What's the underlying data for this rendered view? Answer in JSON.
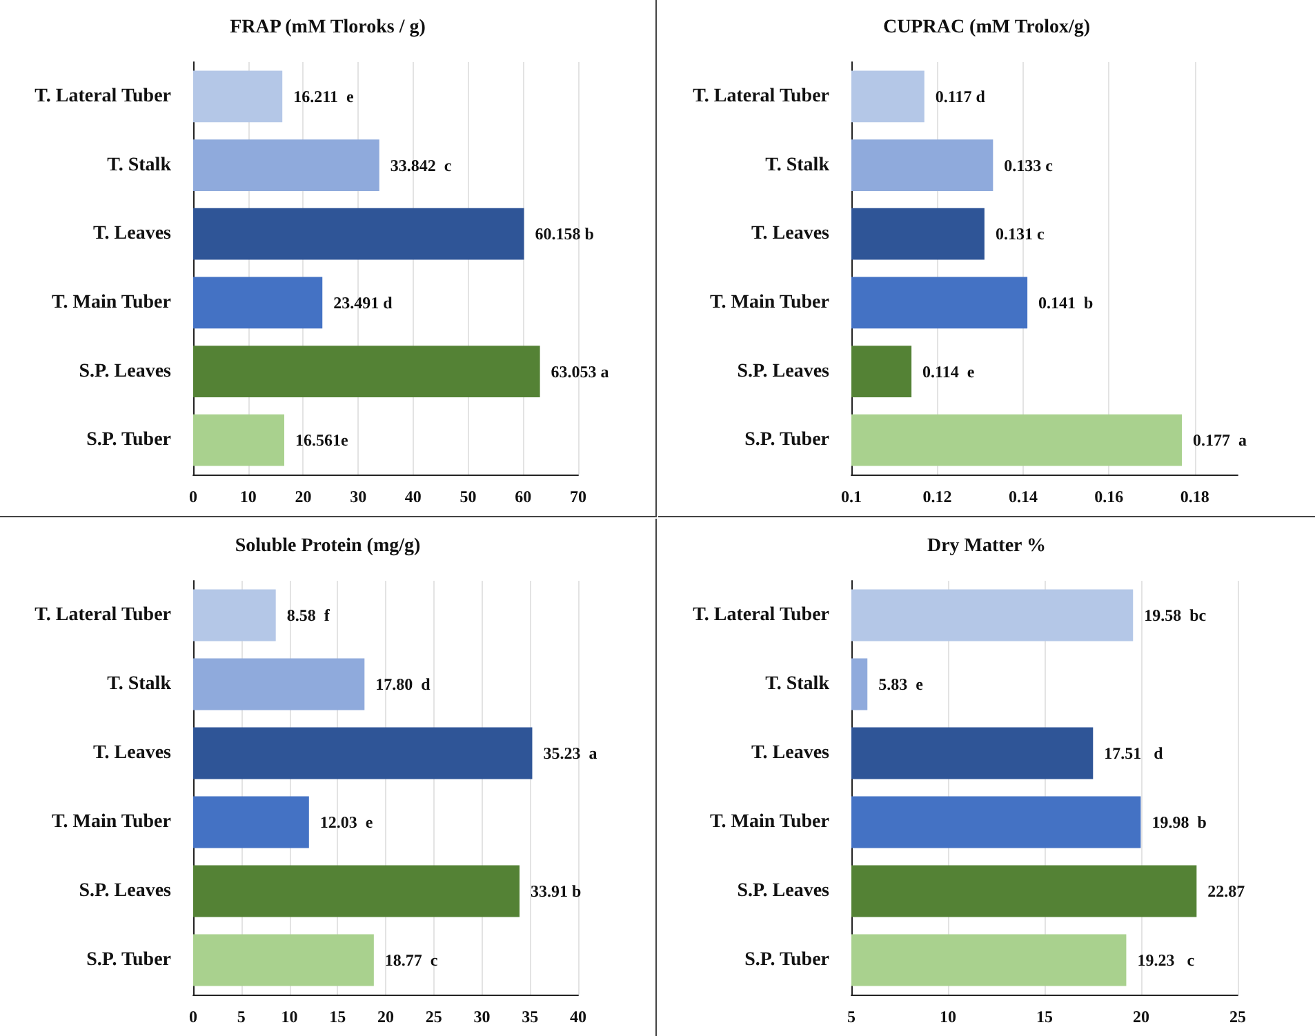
{
  "chart_data": [
    {
      "type": "bar",
      "orientation": "horizontal",
      "title": "FRAP (mM Tloroks / g)",
      "categories": [
        "T. Lateral Tuber",
        "T. Stalk",
        "T. Leaves",
        "T. Main Tuber",
        "S.P. Leaves",
        "S.P. Tuber"
      ],
      "values": [
        16.211,
        33.842,
        60.158,
        23.491,
        63.053,
        16.561
      ],
      "value_labels": [
        "16.211  e",
        "33.842  c",
        "60.158 b",
        "23.491 d",
        "63.053 a",
        "16.561e"
      ],
      "colors": [
        "#b4c7e7",
        "#8faadc",
        "#2f5597",
        "#4472c4",
        "#548235",
        "#a9d18e"
      ],
      "xlim": [
        0,
        70
      ],
      "xticks": [
        0,
        10,
        20,
        30,
        40,
        50,
        60,
        70
      ],
      "grid": "x"
    },
    {
      "type": "bar",
      "orientation": "horizontal",
      "title": "CUPRAC (mM Trolox/g)",
      "categories": [
        "T. Lateral Tuber",
        "T. Stalk",
        "T. Leaves",
        "T. Main Tuber",
        "S.P. Leaves",
        "S.P. Tuber"
      ],
      "values": [
        0.117,
        0.133,
        0.131,
        0.141,
        0.114,
        0.177
      ],
      "value_labels": [
        "0.117 d",
        "0.133 c",
        "0.131 c",
        "0.141  b",
        "0.114  e",
        "0.177  a"
      ],
      "colors": [
        "#b4c7e7",
        "#8faadc",
        "#2f5597",
        "#4472c4",
        "#548235",
        "#a9d18e"
      ],
      "xlim": [
        0.1,
        0.19
      ],
      "xticks": [
        0.1,
        0.12,
        0.14,
        0.16,
        0.18
      ],
      "grid": "x"
    },
    {
      "type": "bar",
      "orientation": "horizontal",
      "title": "Soluble Protein (mg/g)",
      "categories": [
        "T. Lateral Tuber",
        "T. Stalk",
        "T. Leaves",
        "T. Main Tuber",
        "S.P. Leaves",
        "S.P. Tuber"
      ],
      "values": [
        8.58,
        17.8,
        35.23,
        12.03,
        33.91,
        18.77
      ],
      "value_labels": [
        "8.58  f",
        "17.80  d",
        "35.23  a",
        "12.03  e",
        "33.91 b",
        "18.77  c"
      ],
      "colors": [
        "#b4c7e7",
        "#8faadc",
        "#2f5597",
        "#4472c4",
        "#548235",
        "#a9d18e"
      ],
      "xlim": [
        0,
        40
      ],
      "xticks": [
        0,
        5,
        10,
        15,
        20,
        25,
        30,
        35,
        40
      ],
      "grid": "x"
    },
    {
      "type": "bar",
      "orientation": "horizontal",
      "title": "Dry Matter %",
      "categories": [
        "T. Lateral Tuber",
        "T. Stalk",
        "T. Leaves",
        "T. Main Tuber",
        "S.P. Leaves",
        "S.P. Tuber"
      ],
      "values": [
        19.58,
        5.83,
        17.51,
        19.98,
        22.87,
        19.23
      ],
      "value_labels": [
        "19.58  bc",
        "5.83  e",
        "17.51   d",
        "19.98  b",
        "22.87",
        "19.23   c"
      ],
      "colors": [
        "#b4c7e7",
        "#8faadc",
        "#2f5597",
        "#4472c4",
        "#548235",
        "#a9d18e"
      ],
      "xlim": [
        5,
        25
      ],
      "xticks": [
        5,
        10,
        15,
        20,
        25
      ],
      "grid": "x"
    }
  ]
}
